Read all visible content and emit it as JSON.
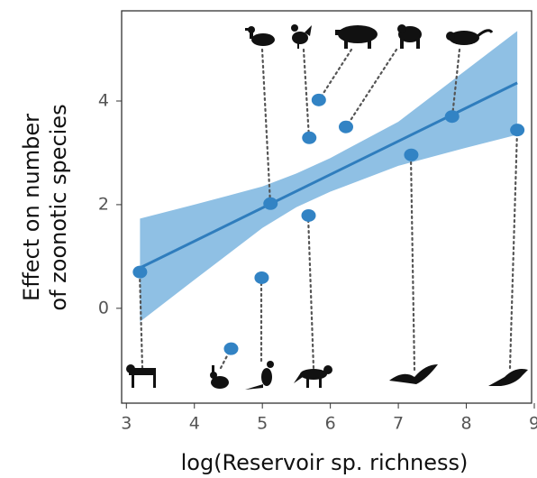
{
  "chart_data": {
    "type": "scatter",
    "x_label": "log(Reservoir sp. richness)",
    "y_label": [
      "Effect on number",
      "of zoonotic species"
    ],
    "xlim": [
      2.93,
      9.0
    ],
    "xticks": [
      3,
      4,
      5,
      6,
      7,
      8,
      9
    ],
    "ylim": [
      -1.83,
      5.74
    ],
    "yticks": [
      0,
      2,
      4
    ],
    "series": [
      {
        "color": "#3283c4",
        "x": [
          3.2,
          4.54,
          4.99,
          5.12,
          5.68,
          5.69,
          5.83,
          6.23,
          7.19,
          7.79,
          8.75
        ],
        "values": [
          0.7,
          -0.78,
          0.59,
          2.02,
          1.79,
          3.29,
          4.02,
          3.5,
          2.96,
          3.7,
          3.44
        ]
      }
    ],
    "fit": {
      "color": "#2f7dbd",
      "x": [
        3.2,
        8.75
      ],
      "y": [
        0.78,
        4.35
      ]
    },
    "band": {
      "color": "#8fc0e4",
      "x": [
        3.2,
        4,
        5,
        5.5,
        6,
        7,
        8,
        8.75
      ],
      "upper": [
        1.73,
        2.0,
        2.35,
        2.6,
        2.9,
        3.6,
        4.6,
        5.35
      ],
      "lower": [
        -0.26,
        0.55,
        1.55,
        1.95,
        2.25,
        2.75,
        3.1,
        3.35
      ]
    }
  }
}
